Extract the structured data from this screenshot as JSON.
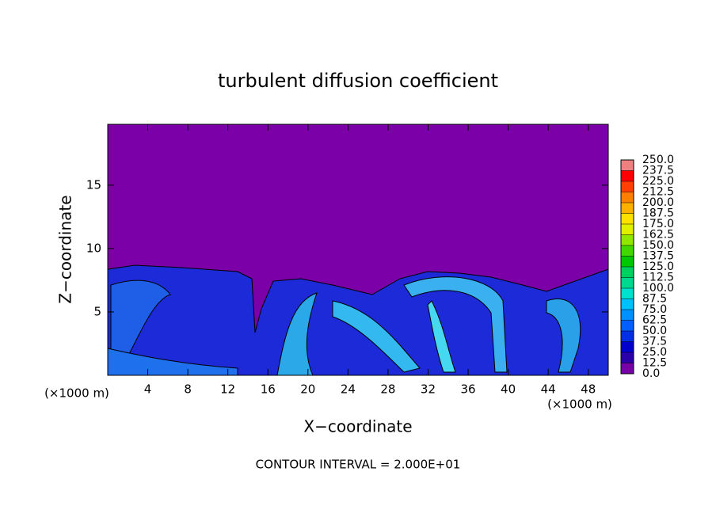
{
  "chart_data": {
    "type": "contour",
    "title": "turbulent diffusion coefficient",
    "xlabel": "X−coordinate",
    "ylabel": "Z−coordinate",
    "x_unit_label": "(×1000 m)",
    "y_unit_label": "(×1000 m)",
    "annotation": "CONTOUR INTERVAL = 2.000E+01",
    "xlim": [
      0,
      50
    ],
    "ylim": [
      0,
      19.8
    ],
    "xticks": [
      4,
      8,
      12,
      16,
      20,
      24,
      28,
      32,
      36,
      40,
      44,
      48
    ],
    "yticks": [
      5,
      10,
      15
    ],
    "colorbar": {
      "levels": [
        {
          "value": 0,
          "label": "0.0"
        },
        12.5,
        {
          "value": 25,
          "label": "25.0"
        },
        37.5,
        {
          "value": 50,
          "label": "50.0"
        },
        62.5,
        {
          "value": 75,
          "label": "75.0"
        },
        87.5,
        {
          "value": 100,
          "label": "100.0"
        },
        112.5,
        {
          "value": 125,
          "label": "125.0"
        },
        137.5,
        {
          "value": 150,
          "label": "150.0"
        },
        162.5,
        {
          "value": 175,
          "label": "175.0"
        },
        187.5,
        {
          "value": 200,
          "label": "200.0"
        },
        212.5,
        {
          "value": 225,
          "label": "225.0"
        },
        237.5,
        {
          "value": 250,
          "label": "250.0"
        }
      ],
      "colors": [
        "#7800a8",
        "#2a00a6",
        "#0000c8",
        "#0030e0",
        "#0060ff",
        "#0090ff",
        "#00c0ff",
        "#00e0d0",
        "#00d890",
        "#00d060",
        "#00c800",
        "#40d800",
        "#90e800",
        "#e0f000",
        "#ffe000",
        "#ffb000",
        "#ff8000",
        "#ff4000",
        "#ff0000",
        "#f08080"
      ]
    }
  }
}
